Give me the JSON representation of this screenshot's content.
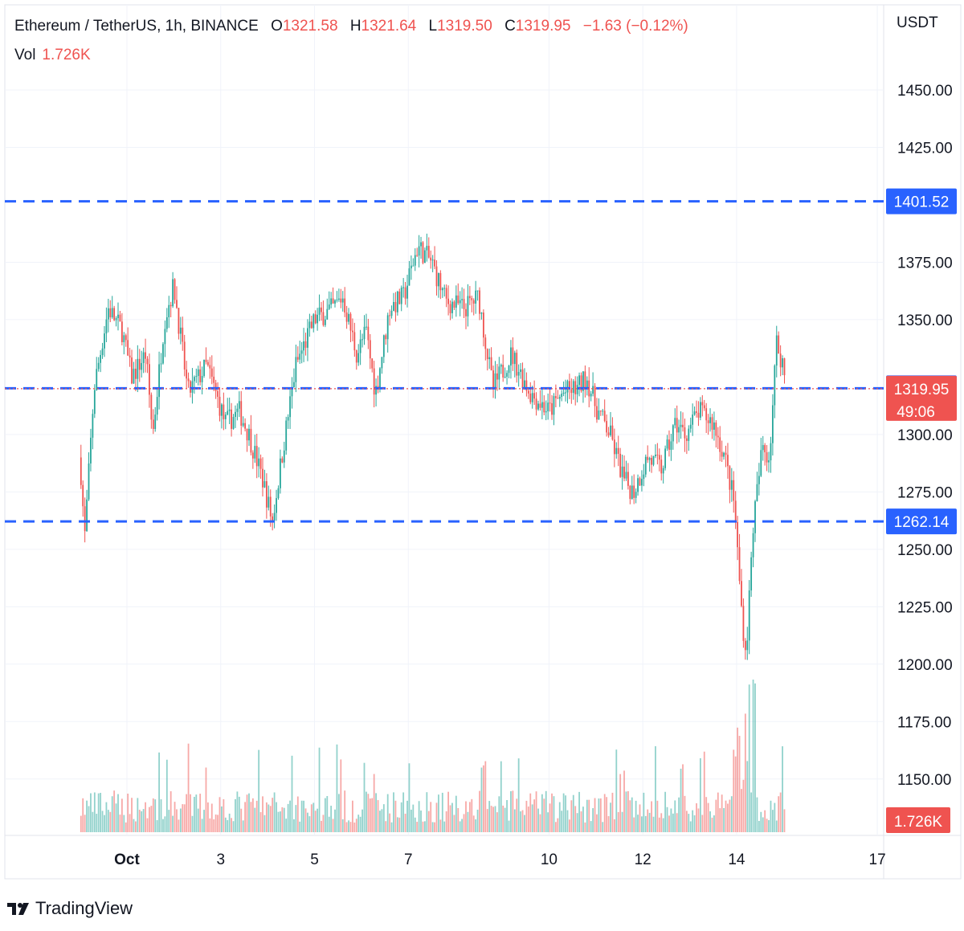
{
  "header": {
    "symbol": "Ethereum / TetherUS, 1h, BINANCE",
    "open_label": "O",
    "open": "1321.58",
    "high_label": "H",
    "high": "1321.64",
    "low_label": "L",
    "low": "1319.50",
    "close_label": "C",
    "close": "1319.95",
    "change": "−1.63 (−0.12%)",
    "vol_label": "Vol",
    "vol": "1.726K"
  },
  "currency": "USDT",
  "brand": "TradingView",
  "colors": {
    "up": "#26a69a",
    "down": "#ef5350",
    "level_line": "#2962ff",
    "grid": "#f0f3fa"
  },
  "chart_data": {
    "type": "candlestick",
    "y_range": [
      1127,
      1503
    ],
    "y_ticks": [
      "1450.00",
      "1425.00",
      "1375.00",
      "1350.00",
      "1300.00",
      "1275.00",
      "1250.00",
      "1225.00",
      "1200.00",
      "1175.00",
      "1150.00"
    ],
    "x_range": [
      0,
      17.2
    ],
    "x_ticks": [
      {
        "label": "Oct",
        "day": 1
      },
      {
        "label": "3",
        "day": 3
      },
      {
        "label": "5",
        "day": 5
      },
      {
        "label": "7",
        "day": 7
      },
      {
        "label": "10",
        "day": 10
      },
      {
        "label": "12",
        "day": 12
      },
      {
        "label": "14",
        "day": 14
      },
      {
        "label": "17",
        "day": 17
      }
    ],
    "horizontal_levels": [
      {
        "value": 1401.52,
        "label": "1401.52"
      },
      {
        "value": 1320.11,
        "label": "1320.11"
      },
      {
        "value": 1262.14,
        "label": "1262.14"
      }
    ],
    "current_price": {
      "value": 1319.95,
      "label": "1319.95",
      "countdown": "49:06"
    },
    "volume_tag": "1.726K",
    "price_path": [
      [
        0.0,
        1290
      ],
      [
        0.1,
        1255
      ],
      [
        0.3,
        1320
      ],
      [
        0.6,
        1355
      ],
      [
        0.9,
        1345
      ],
      [
        1.1,
        1325
      ],
      [
        1.4,
        1335
      ],
      [
        1.55,
        1300
      ],
      [
        1.8,
        1350
      ],
      [
        2.0,
        1365
      ],
      [
        2.3,
        1318
      ],
      [
        2.7,
        1330
      ],
      [
        3.1,
        1305
      ],
      [
        3.4,
        1310
      ],
      [
        3.6,
        1300
      ],
      [
        3.9,
        1280
      ],
      [
        4.1,
        1262
      ],
      [
        4.3,
        1290
      ],
      [
        4.6,
        1330
      ],
      [
        5.0,
        1350
      ],
      [
        5.4,
        1355
      ],
      [
        5.6,
        1360
      ],
      [
        5.9,
        1335
      ],
      [
        6.1,
        1345
      ],
      [
        6.3,
        1318
      ],
      [
        6.6,
        1355
      ],
      [
        6.9,
        1360
      ],
      [
        7.2,
        1382
      ],
      [
        7.5,
        1375
      ],
      [
        7.8,
        1358
      ],
      [
        8.2,
        1355
      ],
      [
        8.5,
        1360
      ],
      [
        8.8,
        1320
      ],
      [
        9.2,
        1335
      ],
      [
        9.6,
        1318
      ],
      [
        10.0,
        1310
      ],
      [
        10.3,
        1318
      ],
      [
        10.6,
        1320
      ],
      [
        10.8,
        1325
      ],
      [
        11.0,
        1312
      ],
      [
        11.3,
        1300
      ],
      [
        11.6,
        1280
      ],
      [
        11.8,
        1275
      ],
      [
        12.1,
        1290
      ],
      [
        12.4,
        1285
      ],
      [
        12.7,
        1305
      ],
      [
        12.9,
        1300
      ],
      [
        13.2,
        1310
      ],
      [
        13.5,
        1305
      ],
      [
        13.75,
        1290
      ],
      [
        13.95,
        1270
      ],
      [
        14.1,
        1225
      ],
      [
        14.2,
        1203
      ],
      [
        14.35,
        1260
      ],
      [
        14.55,
        1295
      ],
      [
        14.7,
        1290
      ],
      [
        14.85,
        1340
      ],
      [
        15.0,
        1330
      ],
      [
        15.05,
        1320
      ]
    ]
  }
}
